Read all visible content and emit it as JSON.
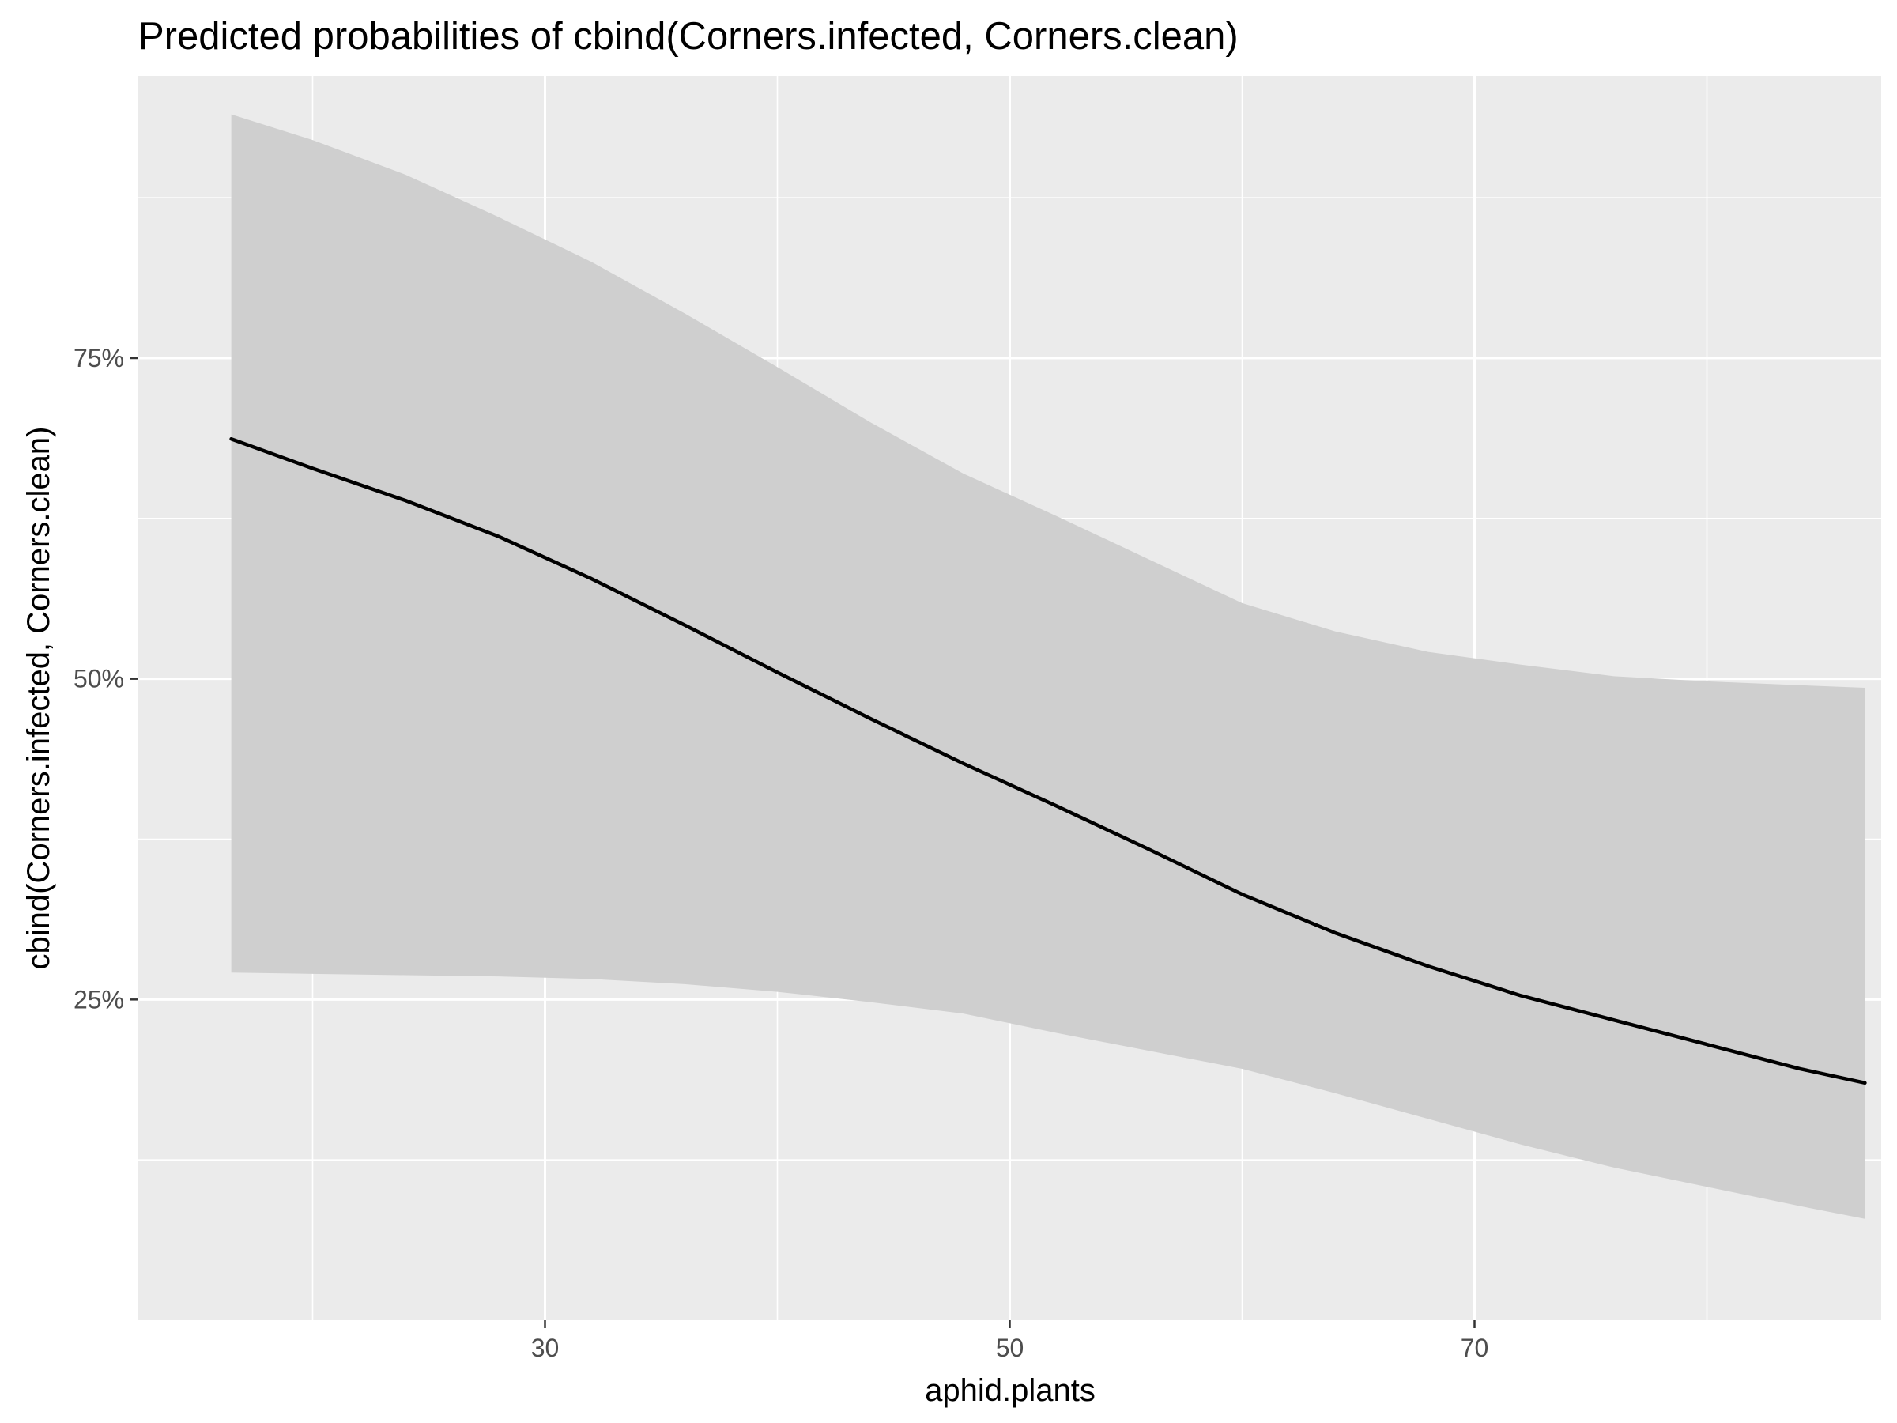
{
  "chart_data": {
    "type": "line",
    "title": "Predicted probabilities of cbind(Corners.infected, Corners.clean)",
    "xlabel": "aphid.plants",
    "ylabel": "cbind(Corners.infected, Corners.clean)",
    "xlim": [
      12.5,
      87.5
    ],
    "ylim": [
      0.0,
      0.97
    ],
    "x_ticks": [
      {
        "value": 30,
        "label": "30"
      },
      {
        "value": 50,
        "label": "50"
      },
      {
        "value": 70,
        "label": "70"
      }
    ],
    "x_minor_ticks": [
      20,
      40,
      60,
      80
    ],
    "y_ticks": [
      {
        "value": 0.25,
        "label": "25%"
      },
      {
        "value": 0.5,
        "label": "50%"
      },
      {
        "value": 0.75,
        "label": "75%"
      }
    ],
    "y_minor_ticks": [
      0.125,
      0.375,
      0.625,
      0.875
    ],
    "grid": true,
    "legend": "none",
    "colors": {
      "panel": "#ebebeb",
      "grid": "#ffffff",
      "band": "#cfcfcf",
      "line": "#000000",
      "tick": "#333333"
    },
    "series": [
      {
        "x": [
          16.5,
          20,
          24,
          28,
          32,
          36,
          40,
          44,
          48,
          52,
          56,
          60,
          64,
          68,
          72,
          76,
          80,
          84,
          86.8
        ],
        "y": [
          0.687,
          0.664,
          0.639,
          0.611,
          0.578,
          0.542,
          0.505,
          0.469,
          0.434,
          0.401,
          0.367,
          0.332,
          0.302,
          0.276,
          0.253,
          0.234,
          0.215,
          0.196,
          0.185
        ],
        "lower": [
          0.271,
          0.27,
          0.269,
          0.268,
          0.266,
          0.262,
          0.256,
          0.248,
          0.239,
          0.224,
          0.21,
          0.196,
          0.177,
          0.157,
          0.137,
          0.119,
          0.104,
          0.089,
          0.079
        ],
        "upper": [
          0.94,
          0.92,
          0.893,
          0.86,
          0.825,
          0.785,
          0.743,
          0.7,
          0.66,
          0.627,
          0.593,
          0.559,
          0.537,
          0.521,
          0.511,
          0.502,
          0.498,
          0.495,
          0.493
        ]
      }
    ]
  }
}
